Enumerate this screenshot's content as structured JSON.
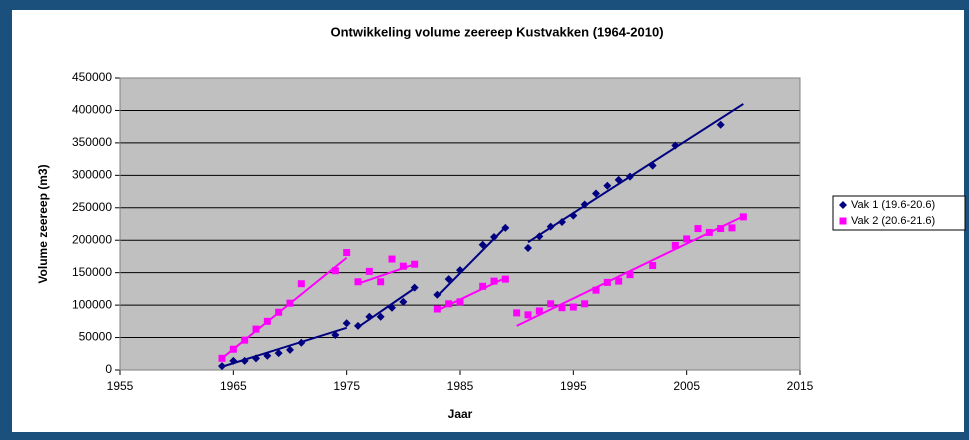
{
  "chart_data": {
    "type": "scatter",
    "title": "Ontwikkeling volume zeereep Kustvakken (1964-2010)",
    "x_label": "Jaar",
    "y_label": "Volume zeereep (m3)",
    "xlim": [
      1955,
      2015
    ],
    "xticks": [
      1955,
      1965,
      1975,
      1985,
      1995,
      2005,
      2015
    ],
    "ylim": [
      0,
      450000
    ],
    "yticks": [
      0,
      50000,
      100000,
      150000,
      200000,
      250000,
      300000,
      350000,
      400000,
      450000
    ],
    "grid": true,
    "legend": "right",
    "series": [
      {
        "name": "Vak 1 (19.6-20.6)",
        "color": "#000080",
        "marker": "diamond",
        "x": [
          1964,
          1965,
          1966,
          1967,
          1968,
          1969,
          1970,
          1971,
          1974,
          1975,
          1976,
          1977,
          1978,
          1979,
          1980,
          1981,
          1983,
          1984,
          1985,
          1987,
          1988,
          1989,
          1991,
          1992,
          1993,
          1994,
          1995,
          1996,
          1997,
          1998,
          1999,
          2000,
          2002,
          2004,
          2008
        ],
        "values": [
          6000,
          14000,
          14000,
          18000,
          22000,
          26000,
          31000,
          42000,
          54000,
          72000,
          68000,
          82000,
          82000,
          96000,
          105000,
          127000,
          116000,
          140000,
          154000,
          193000,
          205000,
          219000,
          188000,
          206000,
          221000,
          228000,
          238000,
          255000,
          272000,
          284000,
          293000,
          298000,
          315000,
          346000,
          378000
        ],
        "trendlines": [
          {
            "x": [
              1964,
              1975
            ],
            "values": [
              5000,
              65000
            ]
          },
          {
            "x": [
              1976,
              1981
            ],
            "values": [
              66000,
              126000
            ]
          },
          {
            "x": [
              1983,
              1989
            ],
            "values": [
              114000,
              220000
            ]
          },
          {
            "x": [
              1991,
              2010
            ],
            "values": [
              197000,
              410000
            ]
          }
        ]
      },
      {
        "name": "Vak 2 (20.6-21.6)",
        "color": "#ff00ff",
        "marker": "square",
        "x": [
          1964,
          1965,
          1966,
          1967,
          1968,
          1969,
          1970,
          1971,
          1974,
          1975,
          1976,
          1977,
          1978,
          1979,
          1980,
          1981,
          1983,
          1984,
          1985,
          1987,
          1988,
          1989,
          1990,
          1991,
          1992,
          1993,
          1994,
          1995,
          1996,
          1997,
          1998,
          1999,
          2000,
          2002,
          2004,
          2005,
          2006,
          2007,
          2008,
          2009,
          2010
        ],
        "values": [
          18000,
          32000,
          46000,
          63000,
          75000,
          89000,
          103000,
          133000,
          153000,
          181000,
          136000,
          152000,
          136000,
          171000,
          160000,
          163000,
          94000,
          102000,
          105000,
          129000,
          137000,
          140000,
          88000,
          85000,
          91000,
          102000,
          96000,
          97000,
          102000,
          123000,
          135000,
          137000,
          147000,
          161000,
          192000,
          202000,
          218000,
          212000,
          218000,
          219000,
          236000
        ],
        "trendlines": [
          {
            "x": [
              1964,
              1975
            ],
            "values": [
              18000,
              173000
            ]
          },
          {
            "x": [
              1976,
              1981
            ],
            "values": [
              133000,
              163000
            ]
          },
          {
            "x": [
              1983,
              1989
            ],
            "values": [
              92000,
              142000
            ]
          },
          {
            "x": [
              1990,
              2010
            ],
            "values": [
              68000,
              237000
            ]
          }
        ]
      }
    ]
  }
}
